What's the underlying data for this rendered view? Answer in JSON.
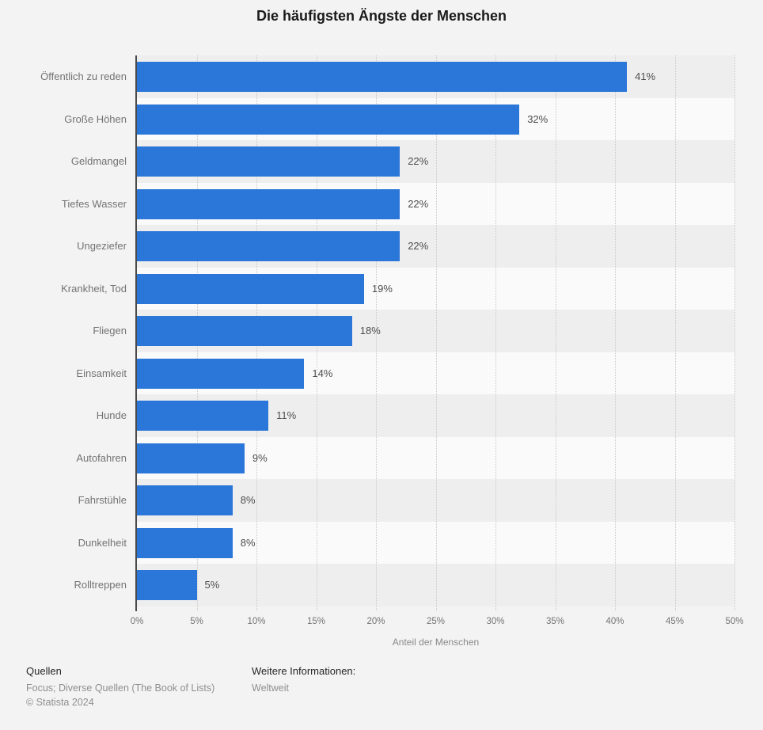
{
  "chart_data": {
    "type": "bar",
    "orientation": "horizontal",
    "title": "Die häufigsten Ängste der Menschen",
    "categories": [
      "Öffentlich zu reden",
      "Große Höhen",
      "Geldmangel",
      "Tiefes Wasser",
      "Ungeziefer",
      "Krankheit, Tod",
      "Fliegen",
      "Einsamkeit",
      "Hunde",
      "Autofahren",
      "Fahrstühle",
      "Dunkelheit",
      "Rolltreppen"
    ],
    "values": [
      41,
      32,
      22,
      22,
      22,
      19,
      18,
      14,
      11,
      9,
      8,
      8,
      5
    ],
    "value_labels": [
      "41%",
      "32%",
      "22%",
      "22%",
      "22%",
      "19%",
      "18%",
      "14%",
      "11%",
      "9%",
      "8%",
      "8%",
      "5%"
    ],
    "xlabel": "Anteil der Menschen",
    "ylabel": "",
    "xlim": [
      0,
      50
    ],
    "xticks": [
      0,
      5,
      10,
      15,
      20,
      25,
      30,
      35,
      40,
      45,
      50
    ],
    "xtick_labels": [
      "0%",
      "5%",
      "10%",
      "15%",
      "20%",
      "25%",
      "30%",
      "35%",
      "40%",
      "45%",
      "50%"
    ],
    "grid": "vertical-dotted",
    "legend": "none"
  },
  "colors": {
    "background": "#f3f3f3",
    "bar": "#2a76d9",
    "band_dark": "#eeeeee",
    "band_light": "#fafafa",
    "axis_line": "#4a4a4a",
    "gridline": "#c9c9c9",
    "category_label": "#737373",
    "value_label": "#4d4d4d",
    "title": "#1a1a1a"
  },
  "footer": {
    "sources_heading": "Quellen",
    "sources_line": "Focus; Diverse Quellen (The Book of Lists)",
    "copyright": "© Statista 2024",
    "more_info_heading": "Weitere Informationen:",
    "more_info_value": "Weltweit"
  }
}
